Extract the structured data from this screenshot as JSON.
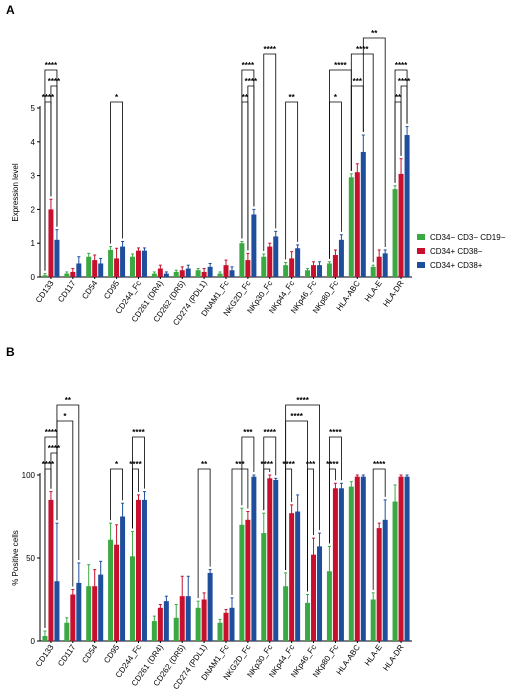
{
  "colors": {
    "cd34neg": "#3aa843",
    "cd34pos38neg": "#c8102e",
    "cd34pos38pos": "#1f4e9c"
  },
  "legend": [
    {
      "label": "CD34− CD3− CD19−",
      "color": "#3aa843"
    },
    {
      "label": "CD34+ CD38−",
      "color": "#c8102e"
    },
    {
      "label": "CD34+ CD38+",
      "color": "#1f4e9c"
    }
  ],
  "chart_data": [
    {
      "panel": "A",
      "type": "bar",
      "ylabel": "Expression level",
      "ylim": [
        0,
        5
      ],
      "yticks": [
        "0",
        "1",
        "2",
        "3",
        "4",
        "5"
      ],
      "categories": [
        "CD133",
        "CD117",
        "CD54",
        "CD95",
        "CD244_Fc",
        "CD261 (DR4)",
        "CD262 (DR5)",
        "CD274 (PDL1)",
        "DNAM1_Fc",
        "NKG2D_Fc",
        "NKp30_Fc",
        "NKp44_Fc",
        "NKp46_Fc",
        "NKp80_Fc",
        "HLA-ABC",
        "HLA-E",
        "HLA-DR"
      ],
      "series": [
        {
          "name": "CD34− CD3− CD19−",
          "values": [
            0.05,
            0.1,
            0.6,
            0.8,
            0.6,
            0.1,
            0.15,
            0.2,
            0.1,
            1.0,
            0.6,
            0.35,
            0.2,
            0.4,
            2.95,
            0.3,
            2.6
          ],
          "errors": [
            0.05,
            0.05,
            0.1,
            0.1,
            0.08,
            0.05,
            0.05,
            0.05,
            0.05,
            0.05,
            0.08,
            0.08,
            0.05,
            0.05,
            0.1,
            0.05,
            0.1
          ]
        },
        {
          "name": "CD34+ CD38−",
          "values": [
            2.0,
            0.15,
            0.5,
            0.55,
            0.78,
            0.25,
            0.2,
            0.15,
            0.35,
            0.5,
            0.9,
            0.55,
            0.35,
            0.65,
            3.1,
            0.6,
            3.05
          ],
          "errors": [
            0.3,
            0.1,
            0.15,
            0.3,
            0.08,
            0.1,
            0.1,
            0.1,
            0.15,
            0.2,
            0.1,
            0.2,
            0.1,
            0.15,
            0.25,
            0.2,
            0.45
          ]
        },
        {
          "name": "CD34+ CD38+",
          "values": [
            1.1,
            0.4,
            0.4,
            0.9,
            0.78,
            0.1,
            0.25,
            0.3,
            0.2,
            1.85,
            1.2,
            0.85,
            0.35,
            1.1,
            3.7,
            0.7,
            4.2
          ],
          "errors": [
            0.3,
            0.2,
            0.15,
            0.15,
            0.08,
            0.05,
            0.1,
            0.1,
            0.1,
            0.15,
            0.15,
            0.1,
            0.1,
            0.15,
            0.5,
            0.1,
            0.25
          ]
        }
      ],
      "significance": [
        {
          "label": "****",
          "from": 0,
          "s1": 0,
          "to": 0,
          "s2": 1,
          "level": 1
        },
        {
          "label": "****",
          "from": 0,
          "s1": 1,
          "to": 0,
          "s2": 2,
          "level": 2
        },
        {
          "label": "****",
          "from": 0,
          "s1": 0,
          "to": 0,
          "s2": 2,
          "level": 3
        },
        {
          "label": "*",
          "from": 3,
          "s1": 0,
          "to": 3,
          "s2": 2,
          "level": 1
        },
        {
          "label": "**",
          "from": 9,
          "s1": 0,
          "to": 9,
          "s2": 1,
          "level": 1
        },
        {
          "label": "****",
          "from": 9,
          "s1": 1,
          "to": 9,
          "s2": 2,
          "level": 2
        },
        {
          "label": "****",
          "from": 9,
          "s1": 0,
          "to": 9,
          "s2": 2,
          "level": 3
        },
        {
          "label": "****",
          "from": 10,
          "s1": 0,
          "to": 10,
          "s2": 2,
          "level": 4
        },
        {
          "label": "**",
          "from": 11,
          "s1": 0,
          "to": 11,
          "s2": 2,
          "level": 1
        },
        {
          "label": "*",
          "from": 13,
          "s1": 0,
          "to": 13,
          "s2": 2,
          "level": 1
        },
        {
          "label": "****",
          "from": 13,
          "s1": 0,
          "to": 14,
          "s2": 0,
          "level": 3
        },
        {
          "label": "***",
          "from": 14,
          "s1": 0,
          "to": 14,
          "s2": 2,
          "level": 2
        },
        {
          "label": "****",
          "from": 14,
          "s1": 0,
          "to": 15,
          "s2": 0,
          "level": 4
        },
        {
          "label": "**",
          "from": 14,
          "s1": 2,
          "to": 15,
          "s2": 2,
          "level": 5
        },
        {
          "label": "**",
          "from": 16,
          "s1": 0,
          "to": 16,
          "s2": 1,
          "level": 1
        },
        {
          "label": "****",
          "from": 16,
          "s1": 1,
          "to": 16,
          "s2": 2,
          "level": 2
        },
        {
          "label": "****",
          "from": 16,
          "s1": 0,
          "to": 16,
          "s2": 2,
          "level": 3
        }
      ]
    },
    {
      "panel": "B",
      "type": "bar",
      "ylabel": "% Positive cells",
      "ylim": [
        0,
        100
      ],
      "yticks": [
        "0",
        "50",
        "100"
      ],
      "categories": [
        "CD133",
        "CD117",
        "CD54",
        "CD95",
        "CD244_Fc",
        "CD261 (DR4)",
        "CD262 (DR5)",
        "CD274 (PDL1)",
        "DNAM1_Fc",
        "NKG2D_Fc",
        "NKp30_Fc",
        "NKp44_Fc",
        "NKp46_Fc",
        "NKp80_Fc",
        "HLA-ABC",
        "HLA-E",
        "HLA-DR"
      ],
      "series": [
        {
          "name": "CD34− CD3− CD19−",
          "values": [
            3,
            11,
            33,
            61,
            51,
            12,
            14,
            20,
            11,
            70,
            65,
            33,
            23,
            42,
            93,
            25,
            84
          ],
          "errors": [
            3,
            3,
            13,
            10,
            15,
            3,
            8,
            4,
            2,
            10,
            12,
            8,
            5,
            15,
            3,
            4,
            10
          ]
        },
        {
          "name": "CD34+ CD38−",
          "values": [
            85,
            28,
            33,
            58,
            85,
            20,
            27,
            25,
            17,
            73,
            98,
            77,
            52,
            92,
            99,
            68,
            99
          ],
          "errors": [
            5,
            3,
            10,
            12,
            3,
            2,
            12,
            4,
            2,
            5,
            2,
            5,
            10,
            3,
            1,
            3,
            1
          ]
        },
        {
          "name": "CD34+ CD38+",
          "values": [
            36,
            35,
            40,
            75,
            85,
            24,
            27,
            41,
            20,
            99,
            97,
            78,
            57,
            92,
            99,
            73,
            99
          ],
          "errors": [
            35,
            12,
            8,
            8,
            5,
            3,
            12,
            2,
            6,
            1,
            1,
            10,
            8,
            3,
            1,
            12,
            1
          ]
        }
      ],
      "significance": [
        {
          "label": "****",
          "from": 0,
          "s1": 0,
          "to": 0,
          "s2": 1,
          "level": 1
        },
        {
          "label": "****",
          "from": 0,
          "s1": 1,
          "to": 0,
          "s2": 2,
          "level": 2
        },
        {
          "label": "****",
          "from": 0,
          "s1": 0,
          "to": 0,
          "s2": 2,
          "level": 3
        },
        {
          "label": "*",
          "from": 0,
          "s1": 2,
          "to": 1,
          "s2": 1,
          "level": 4
        },
        {
          "label": "**",
          "from": 0,
          "s1": 2,
          "to": 1,
          "s2": 2,
          "level": 5
        },
        {
          "label": "*",
          "from": 3,
          "s1": 0,
          "to": 3,
          "s2": 2,
          "level": 1
        },
        {
          "label": "****",
          "from": 4,
          "s1": 0,
          "to": 4,
          "s2": 1,
          "level": 1
        },
        {
          "label": "****",
          "from": 4,
          "s1": 0,
          "to": 4,
          "s2": 2,
          "level": 3
        },
        {
          "label": "**",
          "from": 7,
          "s1": 0,
          "to": 7,
          "s2": 2,
          "level": 1
        },
        {
          "label": "***",
          "from": 8,
          "s1": 2,
          "to": 9,
          "s2": 1,
          "level": 1
        },
        {
          "label": "***",
          "from": 9,
          "s1": 0,
          "to": 9,
          "s2": 2,
          "level": 3
        },
        {
          "label": "****",
          "from": 10,
          "s1": 0,
          "to": 10,
          "s2": 1,
          "level": 1
        },
        {
          "label": "****",
          "from": 10,
          "s1": 0,
          "to": 10,
          "s2": 2,
          "level": 3
        },
        {
          "label": "****",
          "from": 11,
          "s1": 0,
          "to": 11,
          "s2": 1,
          "level": 1
        },
        {
          "label": "***",
          "from": 12,
          "s1": 0,
          "to": 12,
          "s2": 1,
          "level": 1
        },
        {
          "label": "****",
          "from": 11,
          "s1": 0,
          "to": 12,
          "s2": 0,
          "level": 4
        },
        {
          "label": "****",
          "from": 11,
          "s1": 0,
          "to": 12,
          "s2": 2,
          "level": 5
        },
        {
          "label": "****",
          "from": 13,
          "s1": 0,
          "to": 13,
          "s2": 1,
          "level": 1
        },
        {
          "label": "****",
          "from": 13,
          "s1": 0,
          "to": 13,
          "s2": 2,
          "level": 3
        },
        {
          "label": "****",
          "from": 15,
          "s1": 0,
          "to": 15,
          "s2": 2,
          "level": 1
        }
      ]
    }
  ]
}
